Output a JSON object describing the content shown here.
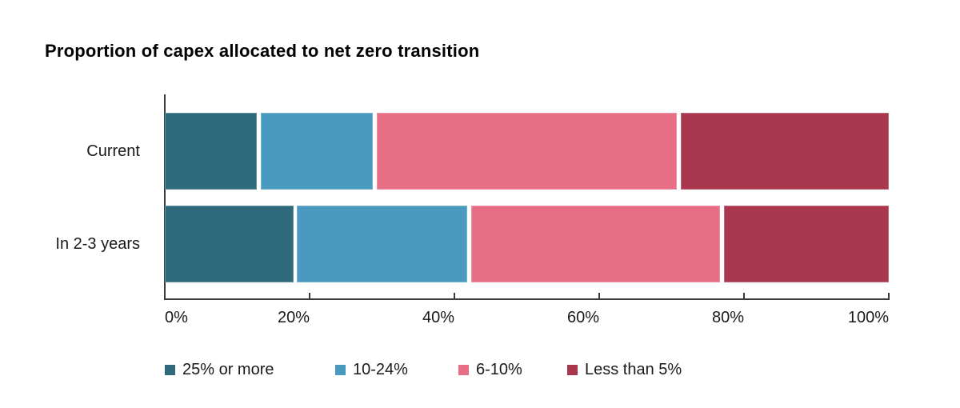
{
  "title": "Proportion of capex allocated to net zero transition",
  "chart_data": {
    "type": "bar",
    "orientation": "horizontal",
    "stacked": true,
    "unit": "%",
    "title": "Proportion of capex allocated to net zero transition",
    "categories": [
      "Current",
      "In 2-3 years"
    ],
    "series": [
      {
        "name": "25% or more",
        "color": "#2E6A7C",
        "values": [
          13,
          18
        ]
      },
      {
        "name": "10-24%",
        "color": "#499ABE",
        "values": [
          16,
          24
        ]
      },
      {
        "name": "6-10%",
        "color": "#E76E85",
        "values": [
          42,
          35
        ]
      },
      {
        "name": "Less than 5%",
        "color": "#A9384F",
        "values": [
          29,
          23
        ]
      }
    ],
    "x_axis": {
      "range": [
        0,
        100
      ],
      "tick_labels": [
        "0%",
        "20%",
        "40%",
        "60%",
        "80%",
        "100%"
      ]
    },
    "legend_position": "bottom",
    "grid": false
  },
  "colors": {
    "axis": "#3c3c3c",
    "text": "#1a1a1a",
    "title": "#000000",
    "background": "#ffffff"
  }
}
